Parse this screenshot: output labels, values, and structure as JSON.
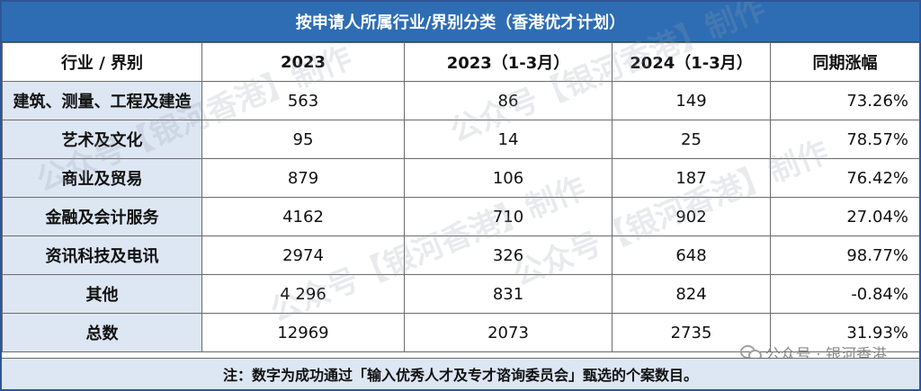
{
  "title": "按申请人所属行业/界别分类（香港优才计划）",
  "headers": [
    "行业 / 界别",
    "2023",
    "2023（1-3月）",
    "2024（1-3月）",
    "同期涨幅"
  ],
  "rows": [
    {
      "cat": "建筑、测量、工程及建造",
      "y2023": "563",
      "q2023": "86",
      "q2024": "149",
      "growth": "73.26%"
    },
    {
      "cat": "艺术及文化",
      "y2023": "95",
      "q2023": "14",
      "q2024": "25",
      "growth": "78.57%"
    },
    {
      "cat": "商业及贸易",
      "y2023": "879",
      "q2023": "106",
      "q2024": "187",
      "growth": "76.42%"
    },
    {
      "cat": "金融及会计服务",
      "y2023": "4162",
      "q2023": "710",
      "q2024": "902",
      "growth": "27.04%"
    },
    {
      "cat": "资讯科技及电讯",
      "y2023": "2974",
      "q2023": "326",
      "q2024": "648",
      "growth": "98.77%"
    },
    {
      "cat": "其他",
      "y2023": "4 296",
      "q2023": "831",
      "q2024": "824",
      "growth": "-0.84%"
    },
    {
      "cat": "总数",
      "y2023": "12969",
      "q2023": "2073",
      "q2024": "2735",
      "growth": "31.93%"
    }
  ],
  "note": "注：数字为成功通过「输入优秀人才及专才谘询委员会」甄选的个案数目。",
  "watermark_text": "公众号【银河香港】制作",
  "wechat": {
    "icon": "wechat-icon",
    "text": "公众号 · 银河香港"
  },
  "colors": {
    "title_bg": "#2e6db4",
    "category_bg": "#dde6f3",
    "border": "#6b6b6b"
  }
}
